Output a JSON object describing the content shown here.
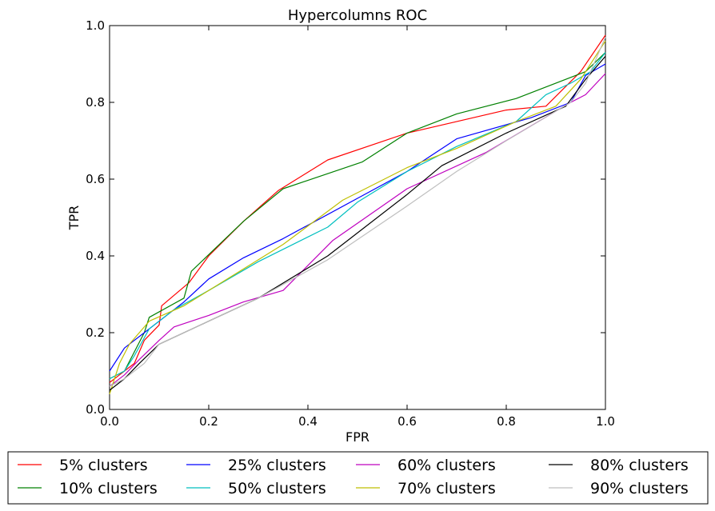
{
  "chart_data": {
    "type": "line",
    "title": "Hypercolumns ROC",
    "xlabel": "FPR",
    "ylabel": "TPR",
    "xlim": [
      0.0,
      1.0
    ],
    "ylim": [
      0.0,
      1.0
    ],
    "xticks": [
      "0.0",
      "0.2",
      "0.4",
      "0.6",
      "0.8",
      "1.0"
    ],
    "yticks": [
      "0.0",
      "0.2",
      "0.4",
      "0.6",
      "0.8",
      "1.0"
    ],
    "grid": false,
    "legend_position": "below",
    "series": [
      {
        "name": "5% clusters",
        "color": "#ff0000",
        "x": [
          0.0,
          0.02,
          0.05,
          0.07,
          0.1,
          0.105,
          0.16,
          0.2,
          0.27,
          0.34,
          0.44,
          0.6,
          0.8,
          0.88,
          0.95,
          1.0
        ],
        "y": [
          0.07,
          0.09,
          0.12,
          0.18,
          0.22,
          0.27,
          0.33,
          0.4,
          0.49,
          0.57,
          0.65,
          0.72,
          0.78,
          0.79,
          0.88,
          0.975
        ]
      },
      {
        "name": "10% clusters",
        "color": "#008000",
        "x": [
          0.0,
          0.03,
          0.07,
          0.08,
          0.15,
          0.165,
          0.27,
          0.35,
          0.51,
          0.6,
          0.7,
          0.82,
          0.92,
          0.96,
          1.0
        ],
        "y": [
          0.08,
          0.1,
          0.2,
          0.24,
          0.29,
          0.36,
          0.49,
          0.575,
          0.645,
          0.72,
          0.77,
          0.81,
          0.86,
          0.88,
          0.93
        ]
      },
      {
        "name": "25% clusters",
        "color": "#0000ff",
        "x": [
          0.0,
          0.03,
          0.07,
          0.1,
          0.15,
          0.2,
          0.27,
          0.35,
          0.5,
          0.6,
          0.7,
          0.85,
          0.93,
          0.96,
          1.0
        ],
        "y": [
          0.1,
          0.16,
          0.2,
          0.23,
          0.28,
          0.34,
          0.395,
          0.445,
          0.55,
          0.62,
          0.705,
          0.76,
          0.8,
          0.87,
          0.9
        ]
      },
      {
        "name": "50% clusters",
        "color": "#00bfbf",
        "x": [
          0.0,
          0.03,
          0.05,
          0.08,
          0.13,
          0.2,
          0.3,
          0.44,
          0.5,
          0.6,
          0.7,
          0.82,
          0.88,
          0.93,
          0.97,
          1.0
        ],
        "y": [
          0.08,
          0.1,
          0.14,
          0.21,
          0.26,
          0.31,
          0.385,
          0.475,
          0.54,
          0.62,
          0.685,
          0.75,
          0.82,
          0.85,
          0.88,
          0.93
        ]
      },
      {
        "name": "60% clusters",
        "color": "#bf00bf",
        "x": [
          0.0,
          0.03,
          0.06,
          0.1,
          0.13,
          0.2,
          0.27,
          0.35,
          0.45,
          0.6,
          0.76,
          0.93,
          0.96,
          1.0
        ],
        "y": [
          0.06,
          0.09,
          0.13,
          0.18,
          0.215,
          0.245,
          0.28,
          0.31,
          0.44,
          0.575,
          0.67,
          0.8,
          0.82,
          0.875
        ]
      },
      {
        "name": "70% clusters",
        "color": "#bfbf00",
        "x": [
          0.0,
          0.02,
          0.04,
          0.08,
          0.15,
          0.25,
          0.35,
          0.47,
          0.6,
          0.7,
          0.82,
          0.9,
          0.95,
          1.0
        ],
        "y": [
          0.04,
          0.12,
          0.17,
          0.23,
          0.27,
          0.35,
          0.43,
          0.545,
          0.63,
          0.68,
          0.75,
          0.79,
          0.86,
          0.96
        ]
      },
      {
        "name": "80% clusters",
        "color": "#000000",
        "x": [
          0.0,
          0.03,
          0.06,
          0.1,
          0.2,
          0.3,
          0.44,
          0.6,
          0.67,
          0.8,
          0.92,
          0.96,
          1.0
        ],
        "y": [
          0.05,
          0.08,
          0.12,
          0.17,
          0.23,
          0.29,
          0.4,
          0.56,
          0.635,
          0.72,
          0.79,
          0.86,
          0.92
        ]
      },
      {
        "name": "90% clusters",
        "color": "#bfbfbf",
        "x": [
          0.0,
          0.03,
          0.07,
          0.1,
          0.2,
          0.3,
          0.44,
          0.6,
          0.7,
          0.8,
          0.93,
          0.96,
          1.0
        ],
        "y": [
          0.06,
          0.08,
          0.12,
          0.17,
          0.23,
          0.29,
          0.39,
          0.53,
          0.62,
          0.7,
          0.8,
          0.85,
          0.97
        ]
      }
    ]
  }
}
